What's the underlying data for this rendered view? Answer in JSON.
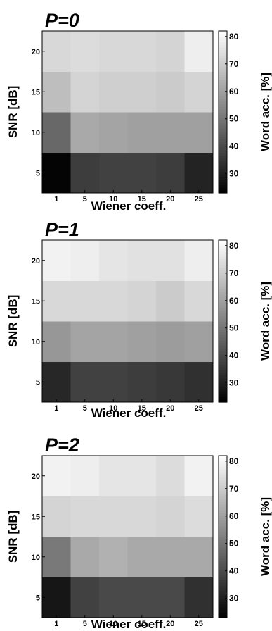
{
  "chart_data": [
    {
      "type": "heatmap",
      "title": "P=0",
      "xlabel": "Wiener coeff.",
      "ylabel": "SNR [dB]",
      "x_categories": [
        "1",
        "5",
        "10",
        "15",
        "20",
        "25"
      ],
      "y_categories": [
        "5",
        "10",
        "15",
        "20"
      ],
      "values": [
        [
          24,
          37,
          38,
          38,
          37,
          31
        ],
        [
          47,
          62,
          61,
          60,
          60,
          60
        ],
        [
          67,
          72,
          71,
          71,
          70,
          72
        ],
        [
          73,
          74,
          73,
          73,
          72,
          78
        ]
      ],
      "colorbar": {
        "label": "Word acc. [%]",
        "range": [
          23,
          82
        ],
        "ticks": [
          30,
          40,
          50,
          60,
          70,
          80
        ]
      }
    },
    {
      "type": "heatmap",
      "title": "P=1",
      "xlabel": "Wiener coeff.",
      "ylabel": "SNR [dB]",
      "x_categories": [
        "1",
        "5",
        "10",
        "15",
        "20",
        "25"
      ],
      "y_categories": [
        "5",
        "10",
        "15",
        "20"
      ],
      "values": [
        [
          32,
          38,
          38,
          37,
          36,
          34
        ],
        [
          58,
          61,
          61,
          60,
          59,
          60
        ],
        [
          73,
          73,
          73,
          72,
          70,
          73
        ],
        [
          79,
          78,
          76,
          75,
          75,
          78
        ]
      ],
      "colorbar": {
        "label": "Word acc. [%]",
        "range": [
          23,
          82
        ],
        "ticks": [
          30,
          40,
          50,
          60,
          70,
          80
        ]
      }
    },
    {
      "type": "heatmap",
      "title": "P=2",
      "xlabel": "Wiener coeff.",
      "ylabel": "SNR [dB]",
      "x_categories": [
        "1",
        "5",
        "10",
        "15",
        "20",
        "25"
      ],
      "y_categories": [
        "5",
        "10",
        "15",
        "20"
      ],
      "values": [
        [
          28,
          38,
          40,
          40,
          40,
          34
        ],
        [
          51,
          62,
          64,
          62,
          62,
          62
        ],
        [
          72,
          73,
          73,
          73,
          72,
          74
        ],
        [
          79,
          78,
          76,
          76,
          74,
          79
        ]
      ],
      "colorbar": {
        "label": "Word acc. [%]",
        "range": [
          23,
          82
        ],
        "ticks": [
          30,
          40,
          50,
          60,
          70,
          80
        ]
      }
    }
  ]
}
